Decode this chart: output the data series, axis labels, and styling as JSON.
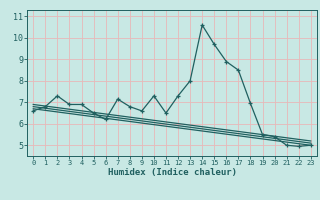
{
  "title": "",
  "xlabel": "Humidex (Indice chaleur)",
  "ylabel": "",
  "bg_color": "#c8e8e4",
  "grid_color": "#e8c8c8",
  "line_color": "#206060",
  "xlim": [
    -0.5,
    23.5
  ],
  "ylim": [
    4.5,
    11.3
  ],
  "yticks": [
    5,
    6,
    7,
    8,
    9,
    10,
    11
  ],
  "xticks": [
    0,
    1,
    2,
    3,
    4,
    5,
    6,
    7,
    8,
    9,
    10,
    11,
    12,
    13,
    14,
    15,
    16,
    17,
    18,
    19,
    20,
    21,
    22,
    23
  ],
  "main_x": [
    0,
    1,
    2,
    3,
    4,
    5,
    6,
    7,
    8,
    9,
    10,
    11,
    12,
    13,
    14,
    15,
    16,
    17,
    18,
    19,
    20,
    21,
    22,
    23
  ],
  "main_y": [
    6.6,
    6.8,
    7.3,
    6.9,
    6.9,
    6.5,
    6.2,
    7.15,
    6.8,
    6.6,
    7.3,
    6.5,
    7.3,
    8.0,
    10.6,
    9.7,
    8.9,
    8.5,
    6.95,
    5.5,
    5.4,
    5.0,
    4.95,
    5.0
  ],
  "line2_x": [
    0,
    23
  ],
  "line2_y": [
    6.9,
    5.2
  ],
  "line3_x": [
    0,
    23
  ],
  "line3_y": [
    6.8,
    5.1
  ],
  "line4_x": [
    0,
    23
  ],
  "line4_y": [
    6.7,
    5.0
  ]
}
